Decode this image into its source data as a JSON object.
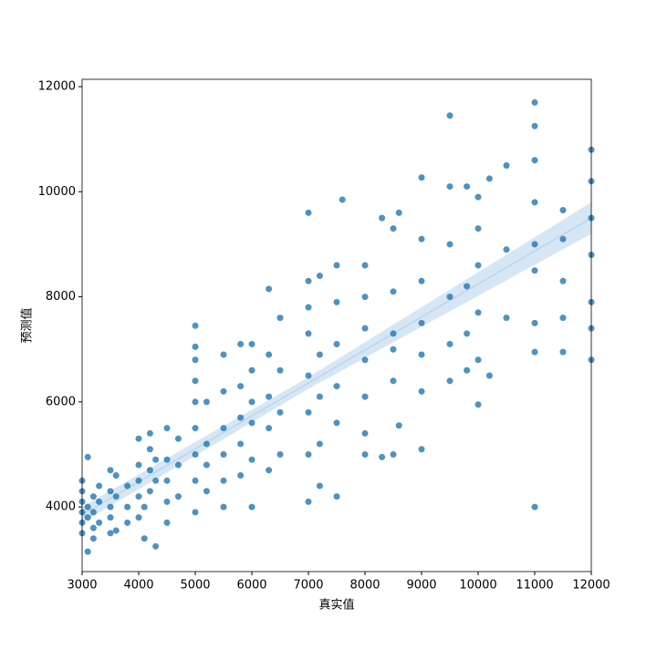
{
  "chart_data": {
    "type": "scatter",
    "x_label": "真实值",
    "y_label": "预测值",
    "xlim": [
      3000,
      12000
    ],
    "ylim": [
      2770,
      12140
    ],
    "xticks": [
      3000,
      4000,
      5000,
      6000,
      7000,
      8000,
      9000,
      10000,
      11000,
      12000
    ],
    "yticks": [
      4000,
      6000,
      8000,
      10000,
      12000
    ],
    "grid": false,
    "series": [
      {
        "color": "#1f77b4",
        "x": [
          3000,
          3000,
          3000,
          3000,
          3000,
          3000,
          3100,
          3100,
          3100,
          3100,
          3200,
          3200,
          3200,
          3200,
          3300,
          3300,
          3300,
          3500,
          3500,
          3500,
          3500,
          3500,
          3600,
          3600,
          3600,
          3800,
          3800,
          3800,
          4000,
          4000,
          4000,
          4000,
          4000,
          4100,
          4100,
          4200,
          4200,
          4200,
          4200,
          4300,
          4300,
          4300,
          4500,
          4500,
          4500,
          4500,
          4500,
          4700,
          4700,
          4700,
          5000,
          5000,
          5000,
          5000,
          5000,
          5000,
          5000,
          5000,
          5000,
          5200,
          5200,
          5200,
          5200,
          5500,
          5500,
          5500,
          5500,
          5500,
          5500,
          5800,
          5800,
          5800,
          5800,
          5800,
          6000,
          6000,
          6000,
          6000,
          6000,
          6000,
          6300,
          6300,
          6300,
          6300,
          6300,
          6500,
          6500,
          6500,
          6500,
          7000,
          7000,
          7000,
          7000,
          7000,
          7000,
          7000,
          7000,
          7200,
          7200,
          7200,
          7200,
          7200,
          7500,
          7500,
          7500,
          7500,
          7500,
          7500,
          7600,
          8000,
          8000,
          8000,
          8000,
          8000,
          8000,
          8000,
          8300,
          8300,
          8500,
          8500,
          8500,
          8500,
          8500,
          8500,
          8600,
          8600,
          9000,
          9000,
          9000,
          9000,
          9000,
          9000,
          9000,
          9500,
          9500,
          9500,
          9500,
          9500,
          9500,
          9800,
          9800,
          9800,
          9800,
          10000,
          10000,
          10000,
          10000,
          10000,
          10000,
          10200,
          10200,
          10500,
          10500,
          10500,
          11000,
          11000,
          11000,
          11000,
          11000,
          11000,
          11000,
          11000,
          11000,
          11500,
          11500,
          11500,
          11500,
          11500,
          12000,
          12000,
          12000,
          12000,
          12000,
          12000,
          12000
        ],
        "values": [
          3500,
          3700,
          3900,
          4100,
          4300,
          4500,
          3150,
          3800,
          4950,
          4000,
          3400,
          3600,
          3900,
          4200,
          3700,
          4100,
          4400,
          3500,
          3800,
          4000,
          4300,
          4700,
          3550,
          4200,
          4600,
          3700,
          4000,
          4400,
          3800,
          4200,
          4500,
          4800,
          5300,
          3400,
          4000,
          4300,
          4700,
          5100,
          5400,
          3250,
          4500,
          4900,
          3700,
          4100,
          4500,
          4900,
          5500,
          4200,
          4800,
          5300,
          3900,
          4500,
          5000,
          5500,
          6000,
          6400,
          6800,
          7050,
          7450,
          4300,
          4800,
          5200,
          6000,
          4000,
          4500,
          5000,
          5500,
          6200,
          6900,
          4600,
          5200,
          5700,
          6300,
          7100,
          4000,
          4900,
          5600,
          6000,
          6600,
          7100,
          4700,
          5500,
          6100,
          6900,
          8150,
          5000,
          5800,
          6600,
          7600,
          4100,
          5000,
          5800,
          6500,
          7300,
          7800,
          8300,
          9600,
          4400,
          5200,
          6100,
          6900,
          8400,
          4200,
          5600,
          6300,
          7100,
          7900,
          8600,
          9850,
          5000,
          5400,
          6100,
          6800,
          7400,
          8000,
          8600,
          4950,
          9500,
          5000,
          6400,
          7000,
          7300,
          8100,
          9300,
          5550,
          9600,
          5100,
          6200,
          6900,
          7500,
          8300,
          9100,
          10270,
          6400,
          7100,
          8000,
          9000,
          10100,
          11450,
          6600,
          7300,
          8200,
          10100,
          5950,
          6800,
          7700,
          8600,
          9300,
          9900,
          6500,
          10250,
          7600,
          8900,
          10500,
          4000,
          6950,
          7500,
          8500,
          9000,
          9800,
          10600,
          11250,
          11700,
          6950,
          7600,
          8300,
          9100,
          9650,
          6800,
          7400,
          7900,
          8800,
          9500,
          10200,
          10800
        ]
      }
    ],
    "regression": {
      "x": [
        3000,
        7000,
        12000
      ],
      "y": [
        3850,
        6360,
        9500
      ],
      "ci_lower": [
        3700,
        6250,
        9200
      ],
      "ci_upper": [
        4000,
        6470,
        9800
      ]
    }
  }
}
